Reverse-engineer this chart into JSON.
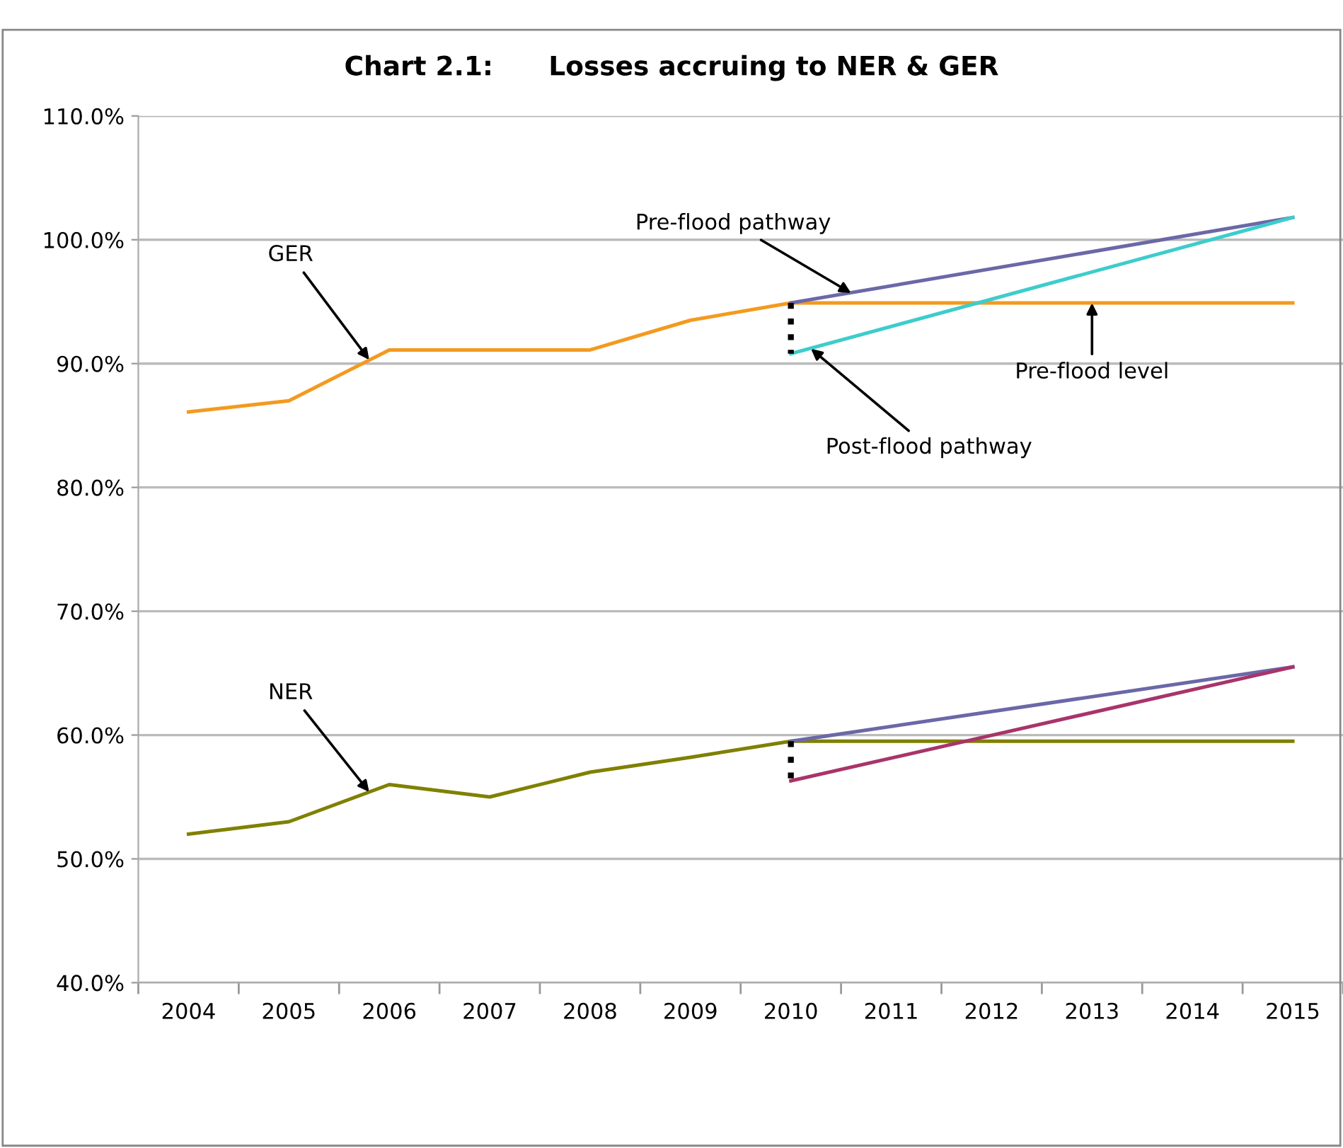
{
  "chart_data": {
    "type": "line",
    "title": "Chart 2.1:      Losses accruing to NER & GER",
    "series": [
      {
        "color": "#f39a1f",
        "x": [
          2004,
          2005,
          2006,
          2007,
          2008,
          2009,
          2010,
          2015
        ],
        "values": [
          86.1,
          87.0,
          91.1,
          91.1,
          91.1,
          93.5,
          94.9,
          94.9
        ]
      },
      {
        "color": "#6b68a8",
        "x": [
          2010,
          2015
        ],
        "values": [
          94.9,
          101.8
        ]
      },
      {
        "color": "#3ecccc",
        "x": [
          2010,
          2015
        ],
        "values": [
          90.8,
          101.8
        ]
      },
      {
        "color": "#000000",
        "x": [
          2010,
          2010
        ],
        "values": [
          94.9,
          90.8
        ],
        "line_style": "dotted"
      },
      {
        "color": "#808000",
        "x": [
          2004,
          2005,
          2006,
          2007,
          2008,
          2009,
          2010,
          2015
        ],
        "values": [
          52.0,
          53.0,
          56.0,
          55.0,
          57.0,
          58.2,
          59.5,
          59.5
        ]
      },
      {
        "color": "#6b68a8",
        "x": [
          2010,
          2015
        ],
        "values": [
          59.5,
          65.5
        ]
      },
      {
        "color": "#a8346a",
        "x": [
          2010,
          2015
        ],
        "values": [
          56.3,
          65.5
        ]
      },
      {
        "color": "#000000",
        "x": [
          2010,
          2010
        ],
        "values": [
          59.5,
          56.3
        ],
        "line_style": "dotted"
      }
    ],
    "annotations": [
      {
        "text": "GER",
        "x": 2005.8,
        "y": 90.3
      },
      {
        "text": "Pre-flood pathway",
        "x": 2010.6,
        "y": 95.7
      },
      {
        "text": "Post-flood pathway",
        "x": 2010.2,
        "y": 91.2
      },
      {
        "text": "Pre-flood level",
        "x": 2013.0,
        "y": 94.9
      },
      {
        "text": "NER",
        "x": 2005.8,
        "y": 55.4
      }
    ],
    "xlim": [
      2003.5,
      2015.5
    ],
    "xticks": [
      2004,
      2005,
      2006,
      2007,
      2008,
      2009,
      2010,
      2011,
      2012,
      2013,
      2014,
      2015,
      {
        "value": 2003.5,
        "label": null
      },
      {
        "value": 2004.5,
        "label": null
      },
      {
        "value": 2005.5,
        "label": null
      },
      {
        "value": 2006.5,
        "label": null
      },
      {
        "value": 2007.5,
        "label": null
      },
      {
        "value": 2008.5,
        "label": null
      },
      {
        "value": 2009.5,
        "label": null
      },
      {
        "value": 2010.5,
        "label": null
      },
      {
        "value": 2011.5,
        "label": null
      },
      {
        "value": 2012.5,
        "label": null
      },
      {
        "value": 2013.5,
        "label": null
      },
      {
        "value": 2014.5,
        "label": null
      },
      {
        "value": 2015.5,
        "label": null
      }
    ],
    "ylim": [
      40,
      110
    ],
    "yticks": [
      {
        "value": 40,
        "label": "40.0%"
      },
      {
        "value": 50,
        "label": "50.0%"
      },
      {
        "value": 60,
        "label": "60.0%"
      },
      {
        "value": 70,
        "label": "70.0%"
      },
      {
        "value": 80,
        "label": "80.0%"
      },
      {
        "value": 90,
        "label": "90.0%"
      },
      {
        "value": 100,
        "label": "100.0%"
      },
      {
        "value": 110,
        "label": "110.0%"
      }
    ],
    "grid": "y",
    "line_style": "solid",
    "marker": "none"
  }
}
